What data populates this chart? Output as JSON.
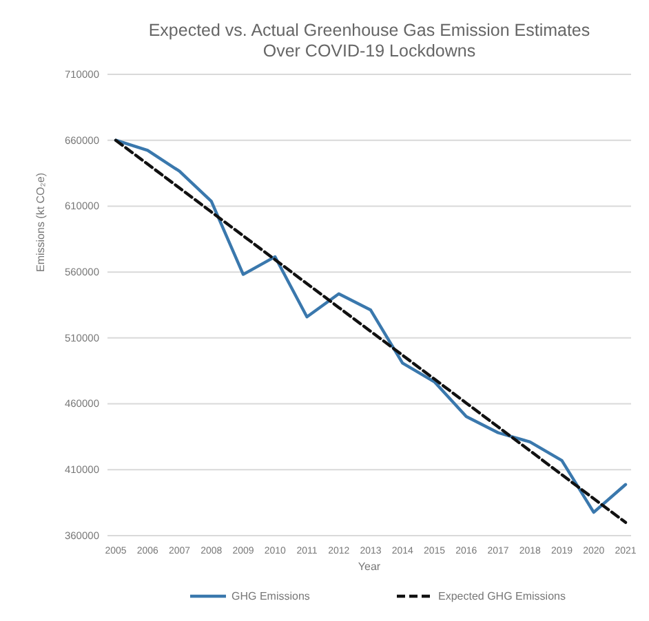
{
  "chart_data": {
    "type": "line",
    "title": "Expected vs. Actual Greenhouse Gas Emission Estimates Over COVID-19 Lockdowns",
    "xlabel": "Year",
    "ylabel": "Emissions (kt CO₂e)",
    "categories": [
      "2005",
      "2006",
      "2007",
      "2008",
      "2009",
      "2010",
      "2011",
      "2012",
      "2013",
      "2014",
      "2015",
      "2016",
      "2017",
      "2018",
      "2019",
      "2020",
      "2021"
    ],
    "series": [
      {
        "name": "GHG Emissions",
        "color": "#3a78ad",
        "line_style": "solid",
        "values": [
          660000,
          652300,
          636500,
          613700,
          558200,
          571600,
          526000,
          543500,
          531200,
          490900,
          476700,
          450400,
          438100,
          431100,
          417000,
          377700,
          398800
        ]
      },
      {
        "name": "Expected GHG Emissions",
        "color": "#111111",
        "line_style": "dashed",
        "values": [
          660000,
          641900,
          623800,
          605600,
          587500,
          569400,
          551200,
          533100,
          515000,
          496900,
          478800,
          460600,
          442500,
          424400,
          406200,
          388100,
          370000
        ]
      }
    ],
    "ylim": [
      360000,
      710000
    ],
    "yticks": [
      360000,
      410000,
      460000,
      510000,
      560000,
      610000,
      660000,
      710000
    ],
    "grid": "y",
    "legend": "bottom"
  }
}
